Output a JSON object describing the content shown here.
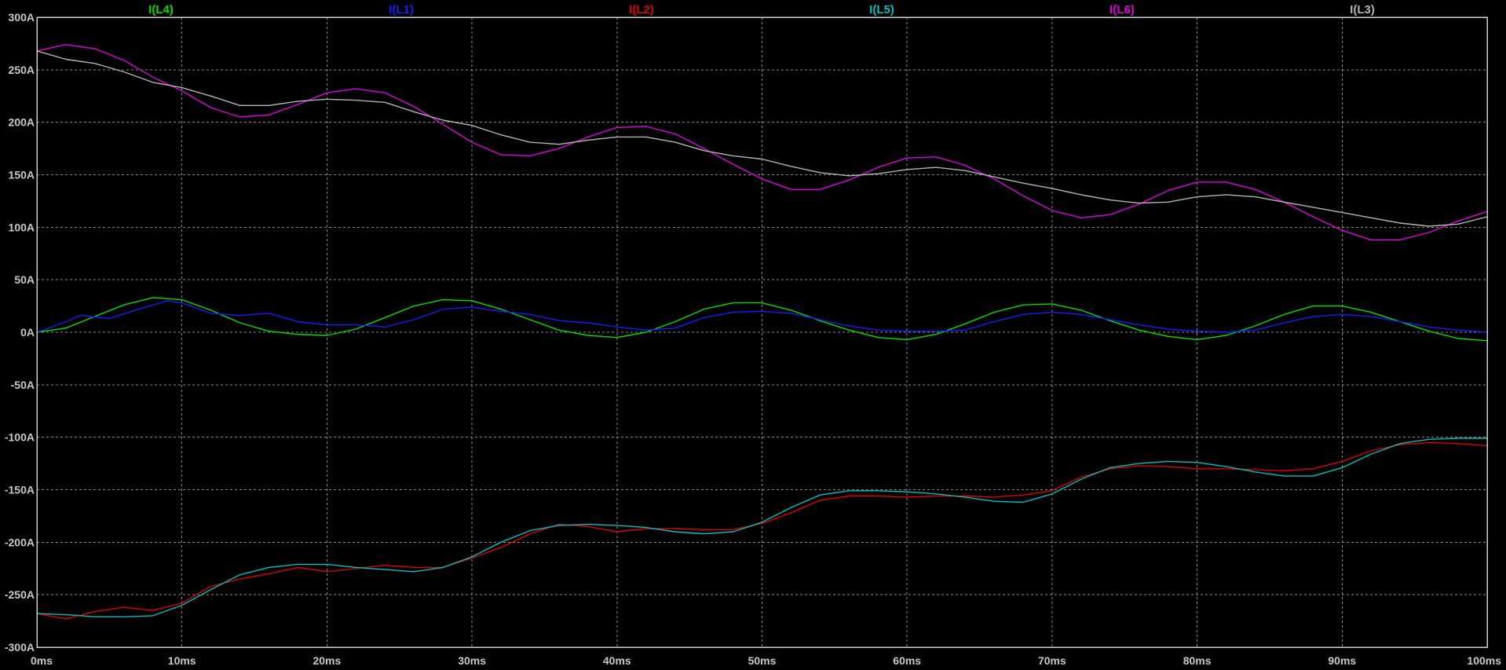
{
  "chart_data": {
    "type": "line",
    "xlabel": "",
    "ylabel": "",
    "xlim": [
      0,
      100
    ],
    "ylim": [
      -300,
      300
    ],
    "grid": true,
    "legend_placement": "top",
    "x_ticks": [
      0,
      10,
      20,
      30,
      40,
      50,
      60,
      70,
      80,
      90,
      100
    ],
    "x_tick_labels": [
      "0ms",
      "10ms",
      "20ms",
      "30ms",
      "40ms",
      "50ms",
      "60ms",
      "70ms",
      "80ms",
      "90ms",
      "100ms"
    ],
    "y_ticks": [
      300,
      250,
      200,
      150,
      100,
      50,
      0,
      -50,
      -100,
      -150,
      -200,
      -250,
      -300
    ],
    "y_tick_labels": [
      "300A",
      "250A",
      "200A",
      "150A",
      "100A",
      "50A",
      "0A",
      "-50A",
      "-100A",
      "-150A",
      "-200A",
      "-250A",
      "-300A"
    ],
    "series": [
      {
        "name": "I(L4)",
        "color": "#00e000",
        "x": [
          0,
          2,
          4,
          6,
          8,
          10,
          12,
          14,
          16,
          18,
          20,
          22,
          24,
          26,
          28,
          30,
          32,
          34,
          36,
          38,
          40,
          42,
          44,
          46,
          48,
          50,
          52,
          54,
          56,
          58,
          60,
          62,
          64,
          66,
          68,
          70,
          72,
          74,
          76,
          78,
          80,
          82,
          84,
          86,
          88,
          90,
          92,
          94,
          96,
          98,
          100
        ],
        "y": [
          0,
          4,
          15,
          26,
          33,
          31,
          21,
          9,
          1,
          -2,
          -3,
          3,
          14,
          25,
          31,
          30,
          22,
          12,
          2,
          -3,
          -5,
          0,
          10,
          22,
          28,
          28,
          21,
          11,
          2,
          -5,
          -7,
          -2,
          8,
          19,
          26,
          27,
          21,
          11,
          2,
          -4,
          -7,
          -3,
          6,
          17,
          25,
          25,
          19,
          10,
          1,
          -6,
          -8
        ]
      },
      {
        "name": "I(L1)",
        "color": "#1a1aff",
        "x": [
          0,
          2,
          3,
          5,
          7,
          9,
          10,
          12,
          14,
          16,
          18,
          20,
          22,
          24,
          26,
          28,
          30,
          32,
          34,
          36,
          38,
          40,
          42,
          44,
          46,
          48,
          50,
          52,
          54,
          56,
          58,
          60,
          62,
          64,
          66,
          68,
          70,
          72,
          74,
          76,
          78,
          80,
          82,
          84,
          86,
          88,
          90,
          92,
          94,
          96,
          98,
          100
        ],
        "y": [
          0,
          10,
          16,
          13,
          22,
          30,
          28,
          18,
          16,
          18,
          10,
          7,
          7,
          5,
          12,
          22,
          24,
          20,
          17,
          11,
          9,
          5,
          2,
          4,
          14,
          19,
          20,
          18,
          12,
          6,
          2,
          1,
          1,
          2,
          10,
          17,
          19,
          17,
          12,
          7,
          3,
          1,
          0,
          2,
          9,
          15,
          17,
          15,
          10,
          5,
          2,
          0
        ]
      },
      {
        "name": "I(L2)",
        "color": "#e00000",
        "x": [
          0,
          2,
          4,
          6,
          8,
          10,
          12,
          14,
          16,
          18,
          20,
          22,
          24,
          26,
          28,
          30,
          32,
          34,
          36,
          38,
          40,
          42,
          44,
          46,
          48,
          50,
          52,
          54,
          56,
          58,
          60,
          62,
          64,
          66,
          68,
          70,
          72,
          74,
          76,
          78,
          80,
          82,
          84,
          86,
          88,
          90,
          92,
          94,
          96,
          98,
          100
        ],
        "y": [
          -268,
          -273,
          -266,
          -262,
          -265,
          -258,
          -242,
          -235,
          -230,
          -224,
          -228,
          -225,
          -222,
          -224,
          -224,
          -215,
          -205,
          -192,
          -183,
          -185,
          -190,
          -187,
          -187,
          -188,
          -188,
          -182,
          -172,
          -160,
          -156,
          -156,
          -157,
          -156,
          -156,
          -157,
          -155,
          -151,
          -138,
          -130,
          -127,
          -128,
          -130,
          -130,
          -131,
          -132,
          -130,
          -123,
          -113,
          -107,
          -105,
          -106,
          -108
        ]
      },
      {
        "name": "I(L5)",
        "color": "#00c0c0",
        "x": [
          0,
          2,
          4,
          6,
          8,
          10,
          12,
          14,
          16,
          18,
          20,
          22,
          24,
          26,
          28,
          30,
          32,
          34,
          36,
          38,
          40,
          42,
          44,
          46,
          48,
          50,
          52,
          54,
          56,
          58,
          60,
          62,
          64,
          66,
          68,
          70,
          72,
          74,
          76,
          78,
          80,
          82,
          84,
          86,
          88,
          90,
          92,
          94,
          96,
          98,
          100
        ],
        "y": [
          -268,
          -269,
          -271,
          -271,
          -270,
          -260,
          -245,
          -231,
          -224,
          -221,
          -221,
          -224,
          -226,
          -228,
          -224,
          -214,
          -200,
          -189,
          -184,
          -183,
          -184,
          -186,
          -190,
          -192,
          -190,
          -181,
          -167,
          -155,
          -151,
          -151,
          -152,
          -154,
          -157,
          -161,
          -162,
          -154,
          -140,
          -129,
          -125,
          -123,
          -124,
          -128,
          -133,
          -137,
          -137,
          -129,
          -116,
          -106,
          -102,
          -101,
          -101
        ]
      },
      {
        "name": "I(L6)",
        "color": "#e000e0",
        "x": [
          0,
          2,
          4,
          6,
          8,
          10,
          12,
          14,
          16,
          18,
          20,
          22,
          24,
          26,
          28,
          30,
          32,
          34,
          36,
          38,
          40,
          42,
          44,
          46,
          48,
          50,
          52,
          54,
          56,
          58,
          60,
          62,
          64,
          66,
          68,
          70,
          72,
          74,
          76,
          78,
          80,
          82,
          84,
          86,
          88,
          90,
          92,
          94,
          96,
          98,
          100
        ],
        "y": [
          268,
          274,
          270,
          259,
          243,
          230,
          214,
          205,
          207,
          217,
          228,
          232,
          228,
          215,
          198,
          181,
          169,
          168,
          175,
          186,
          195,
          196,
          189,
          175,
          160,
          146,
          136,
          136,
          145,
          157,
          166,
          167,
          159,
          146,
          130,
          116,
          109,
          112,
          122,
          135,
          143,
          143,
          136,
          124,
          110,
          97,
          88,
          88,
          95,
          106,
          115
        ]
      },
      {
        "name": "I(L3)",
        "color": "#b4b4b4",
        "x": [
          0,
          2,
          4,
          6,
          8,
          10,
          12,
          14,
          16,
          18,
          20,
          22,
          24,
          26,
          28,
          30,
          32,
          34,
          36,
          38,
          40,
          42,
          44,
          46,
          48,
          50,
          52,
          54,
          56,
          58,
          60,
          62,
          64,
          66,
          68,
          70,
          72,
          74,
          76,
          78,
          80,
          82,
          84,
          86,
          88,
          90,
          92,
          94,
          96,
          98,
          100
        ],
        "y": [
          268,
          260,
          256,
          248,
          238,
          233,
          225,
          216,
          216,
          220,
          222,
          221,
          219,
          210,
          202,
          197,
          188,
          181,
          179,
          183,
          186,
          186,
          181,
          173,
          168,
          165,
          158,
          152,
          149,
          151,
          155,
          157,
          154,
          148,
          142,
          137,
          131,
          126,
          123,
          124,
          129,
          131,
          129,
          124,
          119,
          114,
          109,
          104,
          101,
          103,
          110
        ]
      }
    ]
  }
}
